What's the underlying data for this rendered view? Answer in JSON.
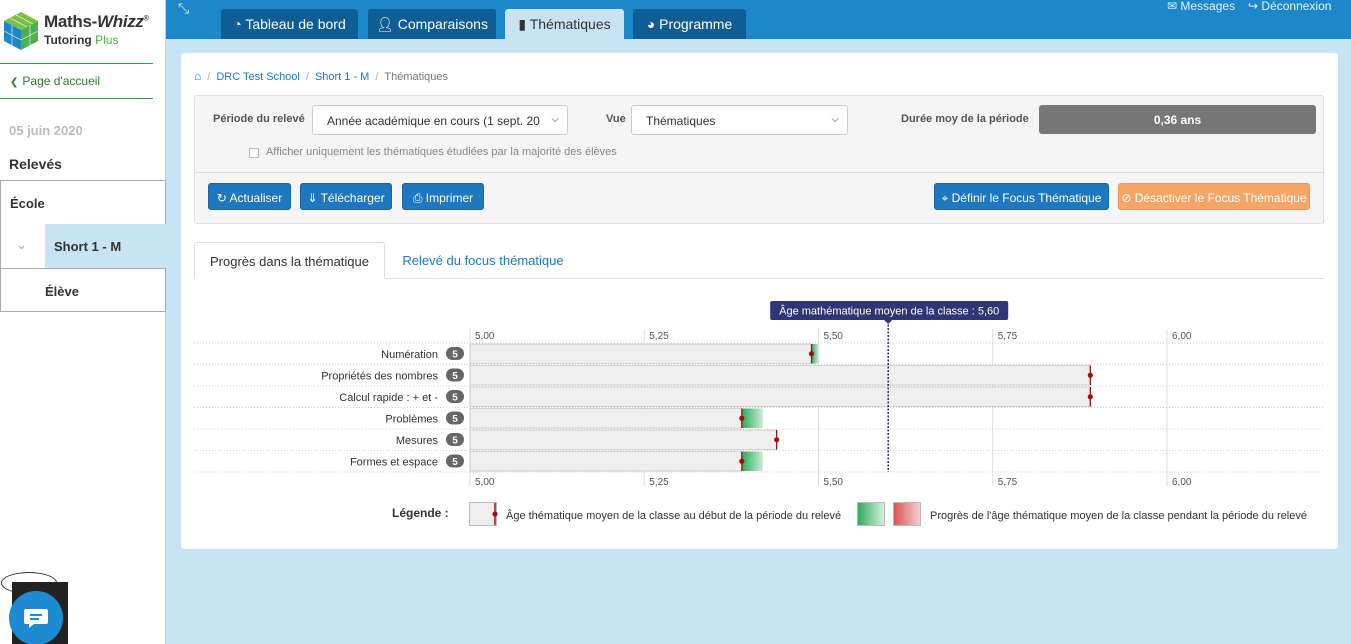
{
  "logo": {
    "line1": "Maths-",
    "line1b": "Whizz",
    "trademark": "®",
    "line2a": "Tutoring",
    "line2b": "Plus"
  },
  "sidebar": {
    "home_label": "Page d'accueil",
    "date": "05 juin 2020",
    "section_title": "Relevés",
    "ecole": "École",
    "class_item": "Short 1 - M",
    "eleve": "Élève"
  },
  "topnav": {
    "tabs": [
      {
        "label": "Tableau de bord",
        "icon": "dashboard-icon"
      },
      {
        "label": "Comparaisons",
        "icon": "user-icon"
      },
      {
        "label": "Thématiques",
        "icon": "book-icon",
        "active": true
      },
      {
        "label": "Programme",
        "icon": "pie-chart-icon"
      }
    ],
    "messages": "Messages",
    "logout": "Déconnexion"
  },
  "breadcrumb": {
    "school": "DRC Test School",
    "class": "Short 1 - M",
    "current": "Thématiques"
  },
  "filters": {
    "periode_label": "Période du relevé",
    "periode_value": "Année académique en cours (1 sept. 20",
    "vue_label": "Vue",
    "vue_value": "Thématiques",
    "duree_label": "Durée moy de la période",
    "duree_value": "0,36 ans",
    "checkbox_label": "Afficher uniquement les thématiques étudiées par la majorité des élèves",
    "checkbox_checked": false
  },
  "buttons": {
    "actualiser": "Actualiser",
    "telecharger": "Télécharger",
    "imprimer": "Imprimer",
    "definir_focus": "Définir le Focus Thématique",
    "desactiver_focus": "Désactiver le Focus Thématique"
  },
  "content_tabs": {
    "progress": "Progrès dans la thématique",
    "focus": "Relevé du focus thématique"
  },
  "chart_data": {
    "type": "bar",
    "orientation": "horizontal",
    "x_ticks": [
      "5,00",
      "5,25",
      "5,50",
      "5,75",
      "6,00"
    ],
    "xlim": [
      5.0,
      6.22
    ],
    "class_average": 5.6,
    "class_average_label": "Âge mathématique moyen de la classe : 5,60",
    "categories": [
      {
        "label": "Numération",
        "count": "5",
        "start": 5.49,
        "end": 5.5
      },
      {
        "label": "Propriétés des nombres",
        "count": "5",
        "start": 5.89,
        "end": 5.89
      },
      {
        "label": "Calcul rapide : + et -",
        "count": "5",
        "start": 5.89,
        "end": 5.89
      },
      {
        "label": "Problèmes",
        "count": "5",
        "start": 5.39,
        "end": 5.42
      },
      {
        "label": "Mesures",
        "count": "5",
        "start": 5.44,
        "end": 5.44
      },
      {
        "label": "Formes et espace",
        "count": "5",
        "start": 5.39,
        "end": 5.42
      }
    ],
    "colors": {
      "progress_positive": "#2eaa5c",
      "progress_negative": "#d9534f",
      "marker": "#a01010",
      "bar": "#eeeeee",
      "avg_line": "#1a1f5a"
    },
    "legend": {
      "title": "Légende :",
      "start_label": "Âge thématique moyen de la classe au début de la période du relevé",
      "progress_label": "Progrès de l'âge thématique moyen de la classe pendant la période du relevé"
    }
  }
}
